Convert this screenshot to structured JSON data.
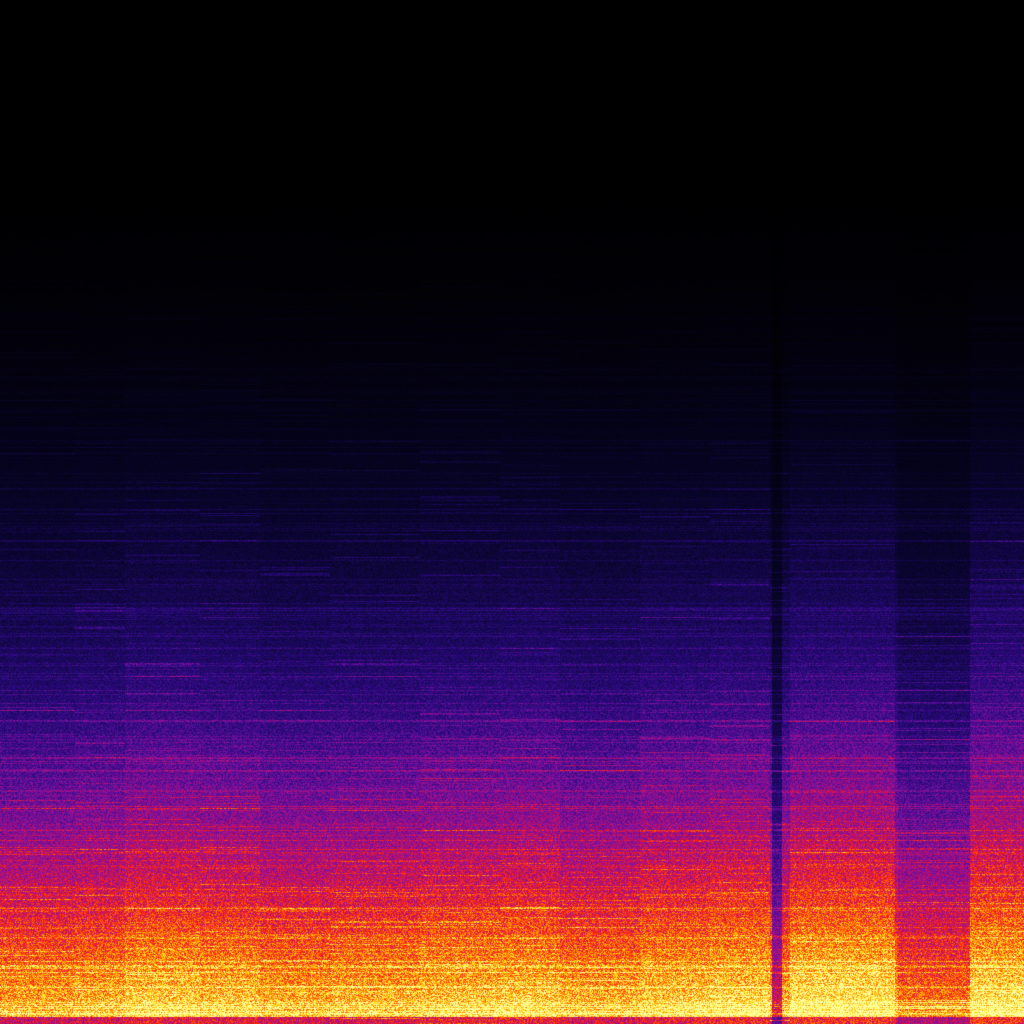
{
  "chart_data": {
    "type": "heatmap",
    "title": "",
    "xlabel": "",
    "ylabel": "",
    "axes_visible": false,
    "grid": false,
    "legend": "none",
    "colormap": [
      "#000000",
      "#0a0530",
      "#2a0a80",
      "#7a10a0",
      "#c0106a",
      "#ff2a10",
      "#ff8a00",
      "#ffe020",
      "#ffffa0"
    ],
    "background": "#000000"
  }
}
